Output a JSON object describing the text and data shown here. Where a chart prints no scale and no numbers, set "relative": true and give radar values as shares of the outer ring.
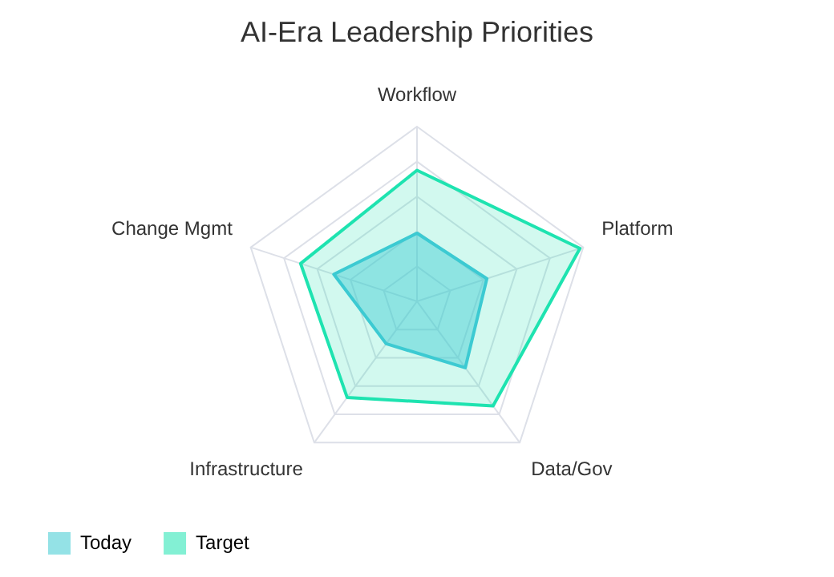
{
  "chart_data": {
    "type": "radar",
    "title": "AI-Era Leadership Priorities",
    "relative": true,
    "grid": true,
    "legend": "bottom left",
    "categories": [
      "Workflow",
      "Platform",
      "Data/Gov",
      "Infrastructure",
      "Change Mgmt"
    ],
    "series": [
      {
        "name": "Today",
        "color": "#3ccad2",
        "values": [
          0.39,
          0.42,
          0.47,
          0.3,
          0.5
        ]
      },
      {
        "name": "Target",
        "color": "#1ee3b0",
        "values": [
          0.75,
          0.98,
          0.74,
          0.68,
          0.7
        ]
      }
    ]
  }
}
